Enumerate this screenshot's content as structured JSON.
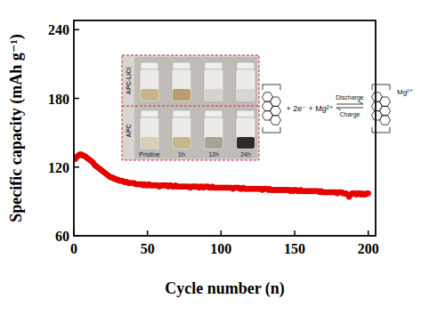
{
  "chart_data": {
    "type": "line",
    "xlabel": "Cycle number (n)",
    "ylabel": "Specific capacity (mAh g⁻¹)",
    "xlim": [
      0,
      205
    ],
    "ylim": [
      60,
      248
    ],
    "xticks": [
      0,
      50,
      100,
      150,
      200
    ],
    "yticks": [
      60,
      120,
      180,
      240
    ],
    "annotations": [
      "APC-LiCl",
      "APC",
      "Pristine",
      "1h",
      "12h",
      "24h",
      "+ 2e⁻ + Mg²⁺",
      "Discharge",
      "Charge",
      "Mg²⁺"
    ],
    "x": [
      1,
      2,
      3,
      4,
      5,
      6,
      7,
      8,
      9,
      10,
      11,
      12,
      13,
      14,
      15,
      16,
      17,
      18,
      19,
      20,
      21,
      22,
      23,
      24,
      25,
      26,
      27,
      28,
      29,
      30,
      31,
      32,
      33,
      34,
      35,
      36,
      37,
      38,
      39,
      40,
      41,
      42,
      43,
      44,
      45,
      46,
      47,
      48,
      49,
      50,
      51,
      52,
      53,
      54,
      55,
      56,
      57,
      58,
      59,
      60,
      61,
      62,
      63,
      64,
      65,
      66,
      67,
      68,
      69,
      70,
      71,
      72,
      73,
      74,
      75,
      76,
      77,
      78,
      79,
      80,
      81,
      82,
      83,
      84,
      85,
      86,
      87,
      88,
      89,
      90,
      91,
      92,
      93,
      94,
      95,
      96,
      97,
      98,
      99,
      100,
      101,
      102,
      103,
      104,
      105,
      106,
      107,
      108,
      109,
      110,
      111,
      112,
      113,
      114,
      115,
      116,
      117,
      118,
      119,
      120,
      121,
      122,
      123,
      124,
      125,
      126,
      127,
      128,
      129,
      130,
      131,
      132,
      133,
      134,
      135,
      136,
      137,
      138,
      139,
      140,
      141,
      142,
      143,
      144,
      145,
      146,
      147,
      148,
      149,
      150,
      151,
      152,
      153,
      154,
      155,
      156,
      157,
      158,
      159,
      160,
      161,
      162,
      163,
      164,
      165,
      166,
      167,
      168,
      169,
      170,
      171,
      172,
      173,
      174,
      175,
      176,
      177,
      178,
      179,
      180,
      181,
      182,
      183,
      184,
      185,
      186,
      187,
      188,
      189,
      190,
      191,
      192,
      193,
      194,
      195,
      196,
      197,
      198,
      199,
      200
    ],
    "series": [
      {
        "color": "#ff0000",
        "marker": "circle",
        "line_style": "solid",
        "values": [
          127,
          129,
          130,
          131,
          131,
          130,
          130,
          129,
          128,
          127,
          126,
          125,
          124,
          122,
          121,
          120,
          119,
          118,
          117,
          116,
          115,
          114,
          113,
          112,
          111,
          111,
          110,
          110,
          109,
          109,
          108,
          108,
          108,
          107,
          107,
          107,
          106,
          106,
          106,
          106,
          106,
          105,
          105,
          105,
          105,
          105,
          104,
          105,
          104,
          104,
          105,
          104,
          104,
          104,
          104,
          104,
          104,
          103,
          104,
          104,
          104,
          104,
          104,
          103,
          104,
          104,
          103,
          103,
          104,
          103,
          103,
          103,
          103,
          103,
          103,
          103,
          103,
          103,
          102,
          103,
          103,
          103,
          103,
          103,
          102,
          103,
          103,
          102,
          103,
          103,
          103,
          102,
          102,
          103,
          102,
          102,
          102,
          102,
          102,
          102,
          102,
          102,
          102,
          102,
          102,
          102,
          102,
          101,
          102,
          102,
          102,
          102,
          101,
          101,
          102,
          101,
          101,
          101,
          101,
          101,
          101,
          101,
          101,
          101,
          101,
          101,
          101,
          100,
          101,
          101,
          101,
          100,
          101,
          100,
          100,
          100,
          100,
          100,
          100,
          100,
          100,
          100,
          100,
          100,
          100,
          100,
          99,
          100,
          99,
          100,
          100,
          99,
          99,
          100,
          99,
          99,
          99,
          99,
          99,
          99,
          99,
          99,
          99,
          99,
          99,
          99,
          98,
          99,
          98,
          98,
          98,
          98,
          98,
          98,
          98,
          98,
          98,
          98,
          97,
          98,
          98,
          98,
          97,
          97,
          97,
          96,
          94,
          96,
          97,
          97,
          97,
          96,
          97,
          97,
          96,
          97,
          96,
          96,
          97,
          97
        ]
      }
    ]
  }
}
